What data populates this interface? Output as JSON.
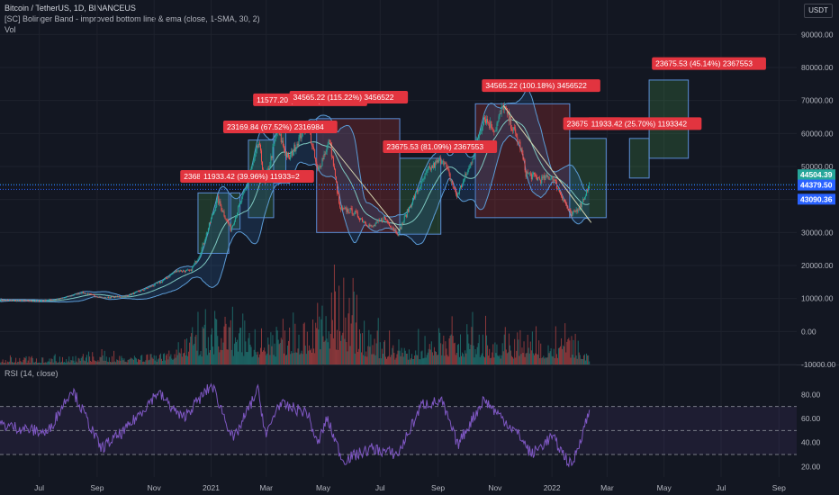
{
  "header": {
    "symbol": "Bitcoin / TetherUS, 1D, BINANCEUS",
    "indicator": "[SC] Bolinger Band - improved bottom line & ema (close, 1-SMA, 30, 2)",
    "volume": "Vol",
    "rsi": "RSI (14, close)",
    "currency": "USDT"
  },
  "colors": {
    "background": "#131722",
    "grid": "#1e222d",
    "band": "#5b9bd5",
    "band_fill": "#2f6fb0",
    "ema": "#7ec8c0",
    "green_box": "#4caf50",
    "red_box": "#e53935",
    "label_red": "#e2343f",
    "rsi": "#7e57c2",
    "trendline": "#d6d6b0",
    "price_line": "#2962ff"
  },
  "chart_data": {
    "type": "candlestick",
    "x_ticks": [
      "Jul",
      "Sep",
      "Nov",
      "2021",
      "Mar",
      "May",
      "Jul",
      "Sep",
      "Nov",
      "2022",
      "Mar",
      "May",
      "Jul",
      "Sep"
    ],
    "price_axis_ticks": [
      "90000.00",
      "80000.00",
      "70000.00",
      "60000.00",
      "50000.00",
      "40000.00",
      "30000.00",
      "20000.00",
      "10000.00",
      "0.00",
      "-10000.00"
    ],
    "rsi_axis_ticks": [
      "80.00",
      "60.00",
      "40.00",
      "20.00"
    ],
    "ylim": [
      -10000,
      95000
    ],
    "rsi_ylim": [
      15,
      90
    ],
    "rsi_levels": [
      70,
      50,
      30
    ],
    "price_badges": [
      {
        "value": "44504.39",
        "price": 44504.39,
        "color": "#26a69a"
      },
      {
        "value": "44379.50",
        "price": 44379.5,
        "color": "#2962ff"
      },
      {
        "value": "43090.36",
        "price": 43090.36,
        "color": "#2962ff"
      }
    ],
    "price_path": [
      [
        "2020-05-20",
        9500
      ],
      [
        "2020-07-01",
        9200
      ],
      [
        "2020-07-25",
        10000
      ],
      [
        "2020-08-15",
        11800
      ],
      [
        "2020-09-08",
        10200
      ],
      [
        "2020-10-01",
        10700
      ],
      [
        "2020-10-22",
        12800
      ],
      [
        "2020-11-10",
        15300
      ],
      [
        "2020-11-25",
        18500
      ],
      [
        "2020-12-10",
        18300
      ],
      [
        "2020-12-20",
        23500
      ],
      [
        "2021-01-08",
        40000
      ],
      [
        "2021-01-22",
        31000
      ],
      [
        "2021-02-08",
        44000
      ],
      [
        "2021-02-21",
        57000
      ],
      [
        "2021-02-28",
        45000
      ],
      [
        "2021-03-13",
        61000
      ],
      [
        "2021-03-25",
        52000
      ],
      [
        "2021-04-14",
        63500
      ],
      [
        "2021-04-25",
        48500
      ],
      [
        "2021-05-08",
        58000
      ],
      [
        "2021-05-19",
        37000
      ],
      [
        "2021-06-01",
        36500
      ],
      [
        "2021-06-22",
        31500
      ],
      [
        "2021-07-05",
        34500
      ],
      [
        "2021-07-20",
        29800
      ],
      [
        "2021-08-05",
        40000
      ],
      [
        "2021-08-22",
        49000
      ],
      [
        "2021-09-06",
        52500
      ],
      [
        "2021-09-21",
        41000
      ],
      [
        "2021-10-05",
        50000
      ],
      [
        "2021-10-20",
        65000
      ],
      [
        "2021-11-01",
        61000
      ],
      [
        "2021-11-10",
        68500
      ],
      [
        "2021-11-28",
        56000
      ],
      [
        "2021-12-04",
        48000
      ],
      [
        "2021-12-20",
        46000
      ],
      [
        "2022-01-01",
        47000
      ],
      [
        "2022-01-22",
        35000
      ],
      [
        "2022-02-01",
        38500
      ],
      [
        "2022-02-10",
        44504
      ]
    ],
    "volume_path": [
      [
        "2020-05-20",
        1200
      ],
      [
        "2020-11-01",
        2500
      ],
      [
        "2021-01-10",
        9000
      ],
      [
        "2021-02-20",
        7000
      ],
      [
        "2021-04-18",
        10000
      ],
      [
        "2021-05-19",
        15000
      ],
      [
        "2021-06-20",
        7000
      ],
      [
        "2021-08-01",
        3500
      ],
      [
        "2021-09-07",
        8000
      ],
      [
        "2021-11-15",
        5500
      ],
      [
        "2022-01-22",
        6500
      ],
      [
        "2022-02-10",
        3000
      ]
    ],
    "rsi_path": [
      [
        "2020-05-20",
        55
      ],
      [
        "2020-07-10",
        48
      ],
      [
        "2020-08-05",
        85
      ],
      [
        "2020-09-05",
        35
      ],
      [
        "2020-10-01",
        50
      ],
      [
        "2020-11-05",
        82
      ],
      [
        "2020-12-01",
        60
      ],
      [
        "2021-01-02",
        88
      ],
      [
        "2021-01-25",
        42
      ],
      [
        "2021-02-20",
        84
      ],
      [
        "2021-03-01",
        45
      ],
      [
        "2021-03-14",
        72
      ],
      [
        "2021-04-14",
        65
      ],
      [
        "2021-04-25",
        38
      ],
      [
        "2021-05-05",
        60
      ],
      [
        "2021-05-22",
        25
      ],
      [
        "2021-06-22",
        35
      ],
      [
        "2021-07-20",
        30
      ],
      [
        "2021-08-15",
        72
      ],
      [
        "2021-09-05",
        74
      ],
      [
        "2021-09-22",
        38
      ],
      [
        "2021-10-20",
        76
      ],
      [
        "2021-11-28",
        45
      ],
      [
        "2021-12-10",
        30
      ],
      [
        "2022-01-01",
        45
      ],
      [
        "2022-01-22",
        20
      ],
      [
        "2022-02-10",
        66
      ]
    ],
    "trendlines": [
      {
        "from": [
          "2021-05-08",
          57000
        ],
        "to": [
          "2021-07-22",
          30500
        ]
      },
      {
        "from": [
          "2021-11-10",
          68500
        ],
        "to": [
          "2022-02-12",
          33000
        ]
      }
    ],
    "boxes": [
      {
        "type": "long",
        "start": "2020-12-18",
        "end": "2021-01-20",
        "low": 23681.32,
        "high": 42000
      },
      {
        "type": "long",
        "start": "2021-01-22",
        "end": "2021-02-01",
        "low": 31000,
        "high": 42000
      },
      {
        "type": "long",
        "start": "2021-02-10",
        "end": "2021-03-09",
        "low": 34500,
        "high": 58000
      },
      {
        "type": "long",
        "start": "2021-03-09",
        "end": "2021-03-22",
        "low": 45000,
        "high": 61500
      },
      {
        "type": "short",
        "start": "2021-04-24",
        "end": "2021-07-22",
        "low": 30000,
        "high": 64500
      },
      {
        "type": "long",
        "start": "2021-07-22",
        "end": "2021-09-04",
        "low": 29500,
        "high": 52500
      },
      {
        "type": "short",
        "start": "2021-10-11",
        "end": "2022-01-20",
        "low": 34500,
        "high": 69000
      },
      {
        "type": "long",
        "start": "2022-01-20",
        "end": "2022-02-28",
        "low": 34500,
        "high": 58500
      },
      {
        "type": "long",
        "start": "2022-03-25",
        "end": "2022-04-15",
        "low": 46500,
        "high": 58500
      },
      {
        "type": "long",
        "start": "2022-04-15",
        "end": "2022-05-27",
        "low": 52500,
        "high": 76200
      }
    ],
    "labels": [
      {
        "text": "23681.32 (1",
        "date": "2020-11-29",
        "price": 47000
      },
      {
        "text": "11933.42 (39.96%) 11933=2",
        "date": "2020-12-20",
        "price": 47000
      },
      {
        "text": "23169.84 (67.52%) 2316984",
        "date": "2021-01-14",
        "price": 62000
      },
      {
        "text": "11577.20 (22.44%) 1157720",
        "date": "2021-02-15",
        "price": 70200
      },
      {
        "text": "34565.22 (115.22%) 3456522",
        "date": "2021-03-26",
        "price": 71000
      },
      {
        "text": "23675.53 (81.09%) 2367553",
        "date": "2021-07-04",
        "price": 56000
      },
      {
        "text": "34565.22 (100.18%) 3456522",
        "date": "2021-10-18",
        "price": 74500
      },
      {
        "text": "23675.53 (68",
        "date": "2022-01-13",
        "price": 63000
      },
      {
        "text": "11933.42 (25.70%) 1193342",
        "date": "2022-02-08",
        "price": 63000
      },
      {
        "text": "23675.53 (45.14%) 2367553",
        "date": "2022-04-18",
        "price": 81200
      }
    ]
  }
}
